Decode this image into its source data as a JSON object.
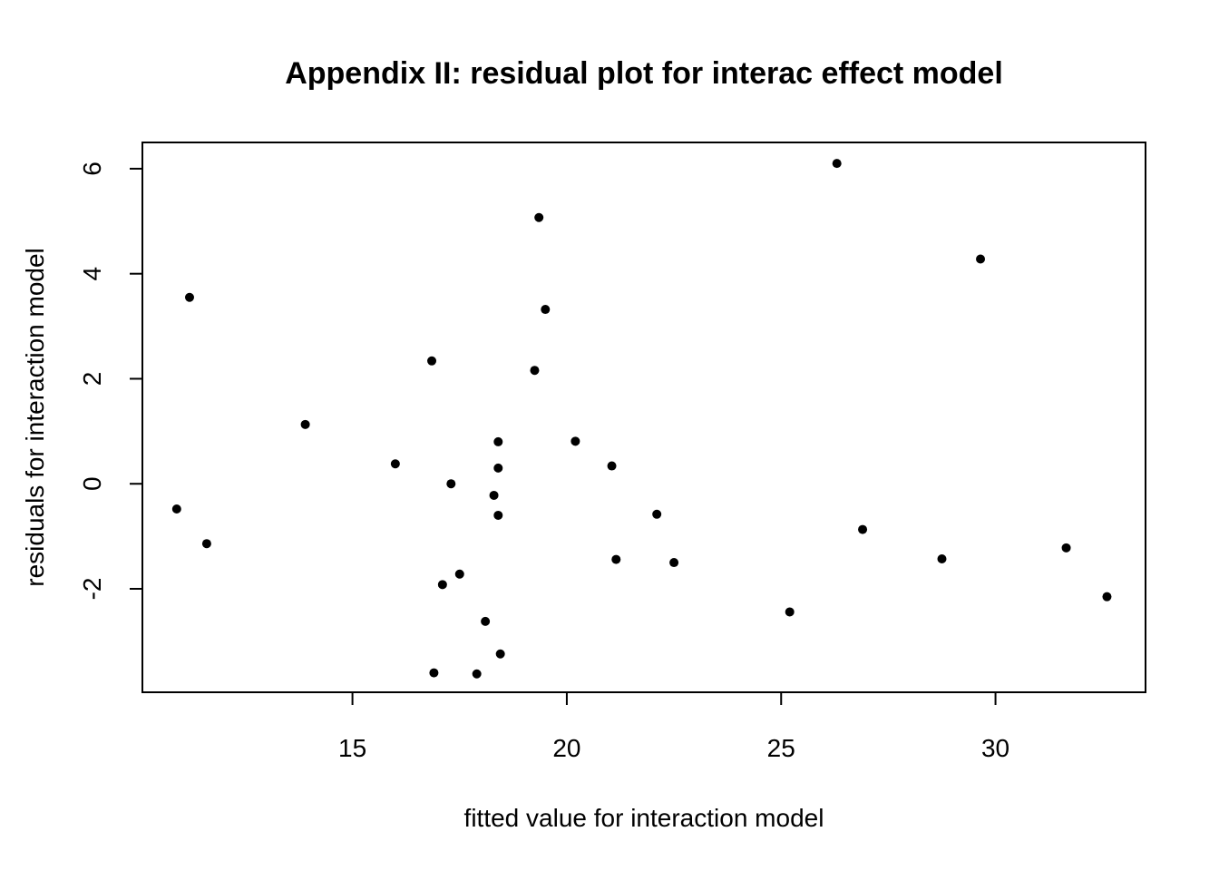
{
  "chart_data": {
    "type": "scatter",
    "title": "Appendix II: residual plot for interac effect model",
    "xlabel": "fitted value for interaction model",
    "ylabel": "residuals for interaction model",
    "xlim": [
      10.1,
      33.5
    ],
    "ylim": [
      -3.97,
      6.5
    ],
    "xticks": [
      15,
      20,
      25,
      30
    ],
    "yticks": [
      -2,
      0,
      2,
      4,
      6
    ],
    "grid": false,
    "legend": "none",
    "point_color": "#000000",
    "series": [
      {
        "points": [
          {
            "x": 10.9,
            "y": -0.48
          },
          {
            "x": 11.2,
            "y": 3.55
          },
          {
            "x": 11.6,
            "y": -1.14
          },
          {
            "x": 13.9,
            "y": 1.13
          },
          {
            "x": 16.0,
            "y": 0.38
          },
          {
            "x": 16.85,
            "y": 2.34
          },
          {
            "x": 16.9,
            "y": -3.6
          },
          {
            "x": 17.1,
            "y": -1.92
          },
          {
            "x": 17.3,
            "y": 0.0
          },
          {
            "x": 17.5,
            "y": -1.72
          },
          {
            "x": 17.9,
            "y": -3.62
          },
          {
            "x": 18.1,
            "y": -2.62
          },
          {
            "x": 18.3,
            "y": -0.22
          },
          {
            "x": 18.4,
            "y": 0.8
          },
          {
            "x": 18.4,
            "y": 0.3
          },
          {
            "x": 18.4,
            "y": -0.6
          },
          {
            "x": 18.45,
            "y": -3.24
          },
          {
            "x": 19.25,
            "y": 2.16
          },
          {
            "x": 19.35,
            "y": 5.07
          },
          {
            "x": 19.5,
            "y": 3.32
          },
          {
            "x": 20.2,
            "y": 0.81
          },
          {
            "x": 21.05,
            "y": 0.34
          },
          {
            "x": 21.15,
            "y": -1.44
          },
          {
            "x": 22.1,
            "y": -0.58
          },
          {
            "x": 22.5,
            "y": -1.5
          },
          {
            "x": 25.2,
            "y": -2.44
          },
          {
            "x": 26.3,
            "y": 6.1
          },
          {
            "x": 26.9,
            "y": -0.87
          },
          {
            "x": 28.75,
            "y": -1.43
          },
          {
            "x": 29.65,
            "y": 4.28
          },
          {
            "x": 31.65,
            "y": -1.22
          },
          {
            "x": 32.6,
            "y": -2.15
          }
        ]
      }
    ]
  }
}
